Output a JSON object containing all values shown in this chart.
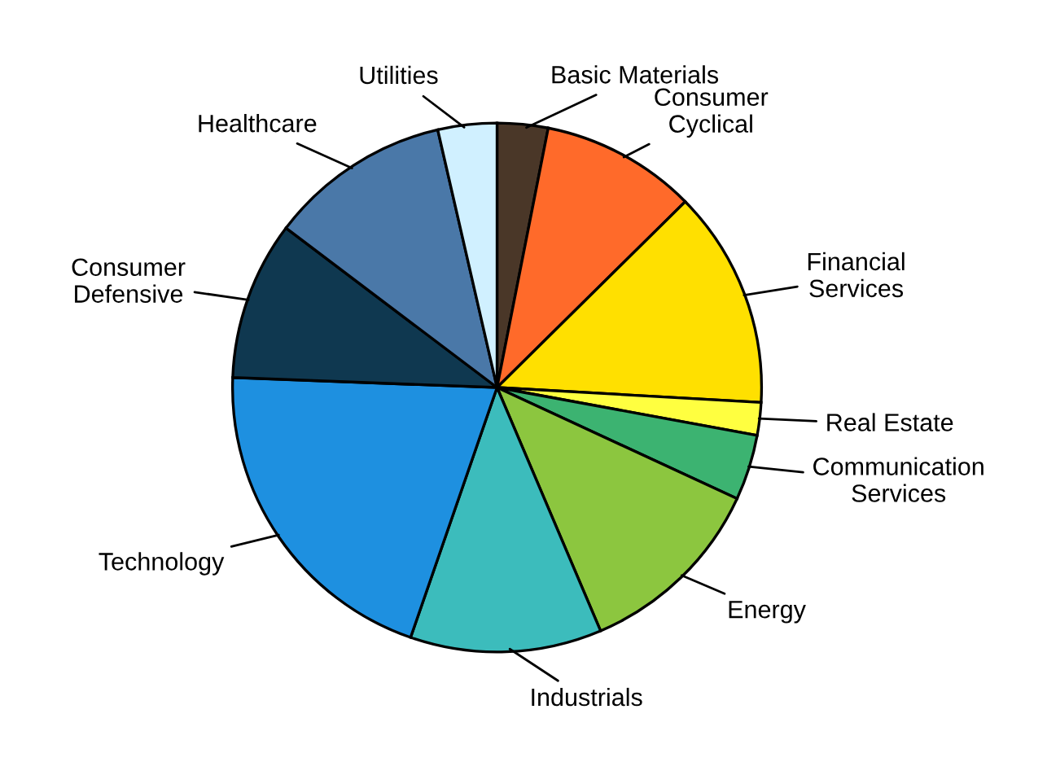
{
  "chart_data": {
    "type": "pie",
    "categories": [
      "Basic Materials",
      "Consumer\nCyclical",
      "Financial\nServices",
      "Real Estate",
      "Communication\nServices",
      "Energy",
      "Industrials",
      "Technology",
      "Consumer\nDefensive",
      "Healthcare",
      "Utilities"
    ],
    "values": [
      3.1,
      9.5,
      13.3,
      2,
      4,
      11.7,
      11.7,
      20.3,
      9.7,
      11.1,
      3.6
    ],
    "colors": [
      "#4a3728",
      "#ff6a2a",
      "#ffe000",
      "#ffff40",
      "#3cb371",
      "#8cc63f",
      "#3cbcbc",
      "#1e90e0",
      "#0f3850",
      "#4a78a8",
      "#d0f0ff"
    ]
  }
}
